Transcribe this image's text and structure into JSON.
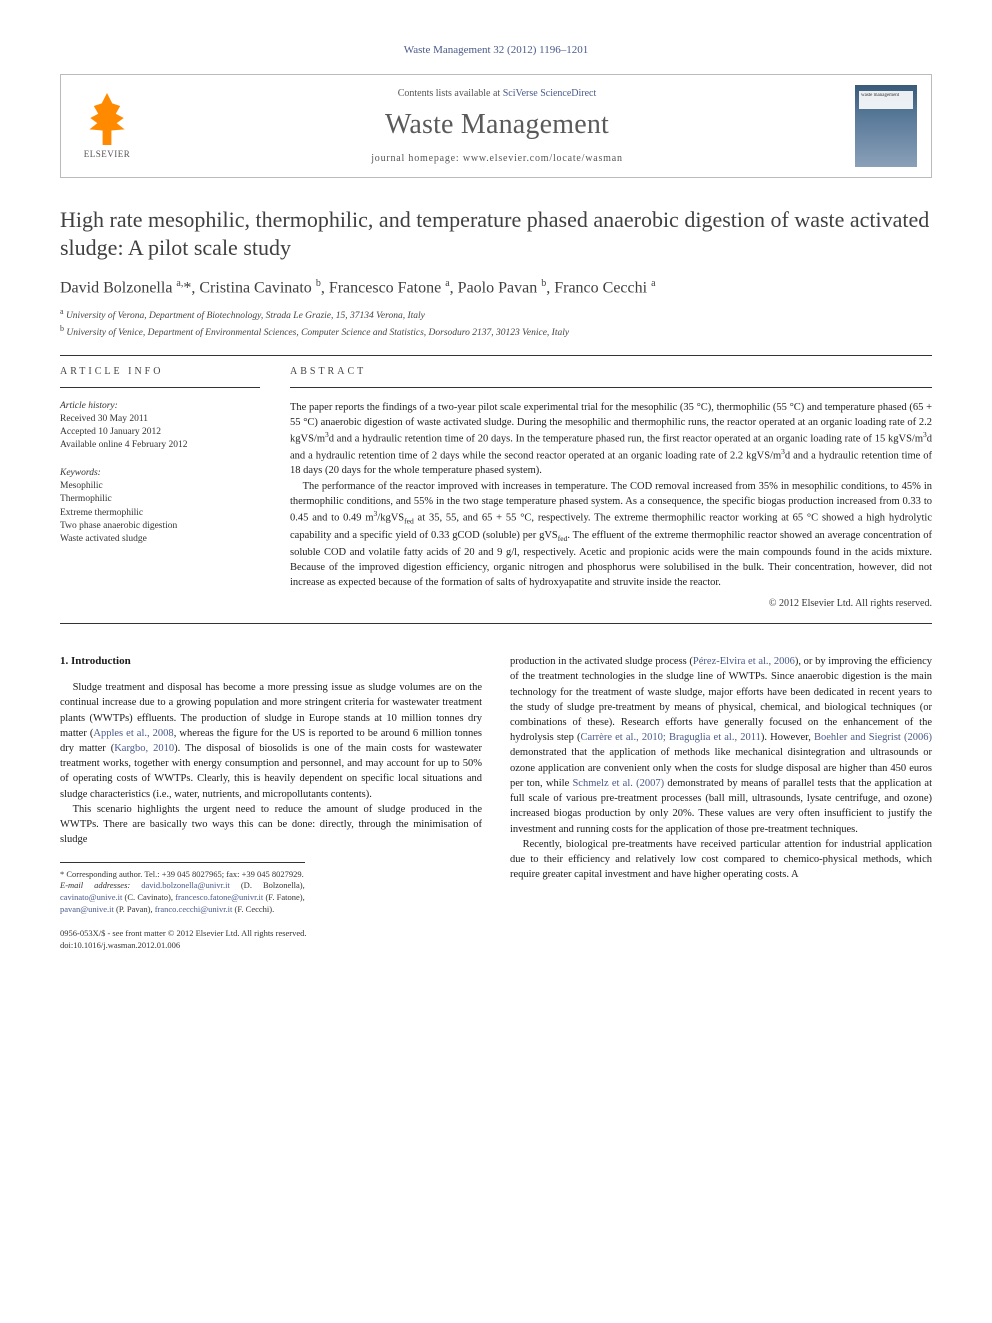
{
  "journal_ref": "Waste Management 32 (2012) 1196–1201",
  "header": {
    "contents_text": "Contents lists available at ",
    "contents_link": "SciVerse ScienceDirect",
    "journal_name": "Waste Management",
    "homepage_label": "journal homepage: ",
    "homepage_url": "www.elsevier.com/locate/wasman",
    "publisher": "ELSEVIER",
    "cover_label": "waste management"
  },
  "title": "High rate mesophilic, thermophilic, and temperature phased anaerobic digestion of waste activated sludge: A pilot scale study",
  "authors_html": "David Bolzonella <sup>a,</sup>*, Cristina Cavinato <sup>b</sup>, Francesco Fatone <sup>a</sup>, Paolo Pavan <sup>b</sup>, Franco Cecchi <sup>a</sup>",
  "affiliations": [
    {
      "mark": "a",
      "text": "University of Verona, Department of Biotechnology, Strada Le Grazie, 15, 37134 Verona, Italy"
    },
    {
      "mark": "b",
      "text": "University of Venice, Department of Environmental Sciences, Computer Science and Statistics, Dorsoduro 2137, 30123 Venice, Italy"
    }
  ],
  "info": {
    "label": "ARTICLE INFO",
    "history_hdr": "Article history:",
    "history": [
      "Received 30 May 2011",
      "Accepted 10 January 2012",
      "Available online 4 February 2012"
    ],
    "keywords_hdr": "Keywords:",
    "keywords": [
      "Mesophilic",
      "Thermophilic",
      "Extreme thermophilic",
      "Two phase anaerobic digestion",
      "Waste activated sludge"
    ]
  },
  "abstract": {
    "label": "ABSTRACT",
    "paras": [
      "The paper reports the findings of a two-year pilot scale experimental trial for the mesophilic (35 °C), thermophilic (55 °C) and temperature phased (65 + 55 °C) anaerobic digestion of waste activated sludge. During the mesophilic and thermophilic runs, the reactor operated at an organic loading rate of 2.2 kgVS/m³d and a hydraulic retention time of 20 days. In the temperature phased run, the first reactor operated at an organic loading rate of 15 kgVS/m³d and a hydraulic retention time of 2 days while the second reactor operated at an organic loading rate of 2.2 kgVS/m³d and a hydraulic retention time of 18 days (20 days for the whole temperature phased system).",
      "The performance of the reactor improved with increases in temperature. The COD removal increased from 35% in mesophilic conditions, to 45% in thermophilic conditions, and 55% in the two stage temperature phased system. As a consequence, the specific biogas production increased from 0.33 to 0.45 and to 0.49 m³/kgVSfed at 35, 55, and 65 + 55 °C, respectively. The extreme thermophilic reactor working at 65 °C showed a high hydrolytic capability and a specific yield of 0.33 gCOD (soluble) per gVSfed. The effluent of the extreme thermophilic reactor showed an average concentration of soluble COD and volatile fatty acids of 20 and 9 g/l, respectively. Acetic and propionic acids were the main compounds found in the acids mixture. Because of the improved digestion efficiency, organic nitrogen and phosphorus were solubilised in the bulk. Their concentration, however, did not increase as expected because of the formation of salts of hydroxyapatite and struvite inside the reactor."
    ],
    "copyright": "© 2012 Elsevier Ltd. All rights reserved."
  },
  "body": {
    "intro_head": "1. Introduction",
    "left_paras": [
      "Sludge treatment and disposal has become a more pressing issue as sludge volumes are on the continual increase due to a growing population and more stringent criteria for wastewater treatment plants (WWTPs) effluents. The production of sludge in Europe stands at 10 million tonnes dry matter (Apples et al., 2008, whereas the figure for the US is reported to be around 6 million tonnes dry matter (Kargbo, 2010). The disposal of biosolids is one of the main costs for wastewater treatment works, together with energy consumption and personnel, and may account for up to 50% of operating costs of WWTPs. Clearly, this is heavily dependent on specific local situations and sludge characteristics (i.e., water, nutrients, and micropollutants contents).",
      "This scenario highlights the urgent need to reduce the amount of sludge produced in the WWTPs. There are basically two ways this can be done: directly, through the minimisation of sludge"
    ],
    "right_paras": [
      "production in the activated sludge process (Pérez-Elvira et al., 2006), or by improving the efficiency of the treatment technologies in the sludge line of WWTPs. Since anaerobic digestion is the main technology for the treatment of waste sludge, major efforts have been dedicated in recent years to the study of sludge pre-treatment by means of physical, chemical, and biological techniques (or combinations of these). Research efforts have generally focused on the enhancement of the hydrolysis step (Carrère et al., 2010; Braguglia et al., 2011). However, Boehler and Siegrist (2006) demonstrated that the application of methods like mechanical disintegration and ultrasounds or ozone application are convenient only when the costs for sludge disposal are higher than 450 euros per ton, while Schmelz et al. (2007) demonstrated by means of parallel tests that the application at full scale of various pre-treatment processes (ball mill, ultrasounds, lysate centrifuge, and ozone) increased biogas production by only 20%. These values are very often insufficient to justify the investment and running costs for the application of those pre-treatment techniques.",
      "Recently, biological pre-treatments have received particular attention for industrial application due to their efficiency and relatively low cost compared to chemico-physical methods, which require greater capital investment and have higher operating costs. A"
    ]
  },
  "footnote": {
    "corr": "* Corresponding author. Tel.: +39 045 8027965; fax: +39 045 8027929.",
    "emails_label": "E-mail addresses: ",
    "emails": [
      {
        "addr": "david.bolzonella@univr.it",
        "who": "(D. Bolzonella),"
      },
      {
        "addr": "cavinato@unive.it",
        "who": "(C. Cavinato),"
      },
      {
        "addr": "francesco.fatone@univr.it",
        "who": "(F. Fatone),"
      },
      {
        "addr": "pavan@unive.it",
        "who": "(P. Pavan),"
      },
      {
        "addr": "franco.cecchi@univr.it",
        "who": "(F. Cecchi)."
      }
    ]
  },
  "doi": {
    "line1": "0956-053X/$ - see front matter © 2012 Elsevier Ltd. All rights reserved.",
    "line2": "doi:10.1016/j.wasman.2012.01.006"
  },
  "colors": {
    "link": "#4a5a8a",
    "title_gray": "#404040",
    "elsevier_orange": "#ff8a00"
  },
  "fonts": {
    "body_pt": 10.5,
    "title_pt": 22,
    "journal_name_pt": 28,
    "small_pt": 9.5
  }
}
